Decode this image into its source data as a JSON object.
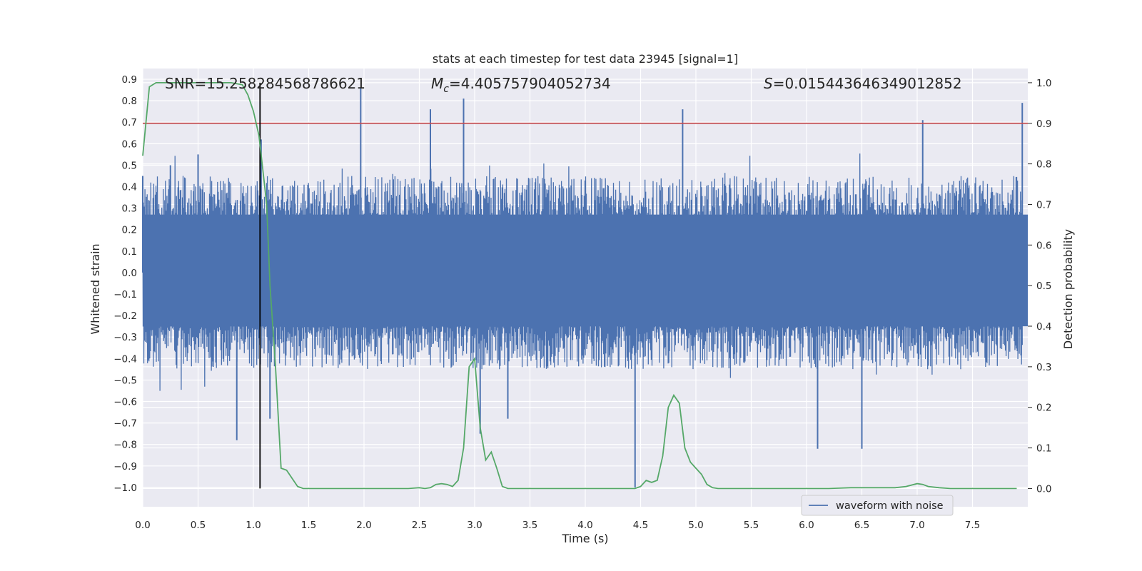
{
  "chart_data": {
    "type": "line",
    "title": "stats at each timestep for test data 23945 [signal=1]",
    "xlabel": "Time (s)",
    "ylabel_left": "Whitened strain",
    "ylabel_right": "Detection probability",
    "xlim": [
      0.0,
      8.0
    ],
    "ylim_left": [
      -1.09,
      0.95
    ],
    "ylim_right": [
      -0.045,
      1.035
    ],
    "x_ticks": [
      "0.0",
      "0.5",
      "1.0",
      "1.5",
      "2.0",
      "2.5",
      "3.0",
      "3.5",
      "4.0",
      "4.5",
      "5.0",
      "5.5",
      "6.0",
      "6.5",
      "7.0",
      "7.5"
    ],
    "y_left_ticks": [
      "0.9",
      "0.8",
      "0.7",
      "0.6",
      "0.5",
      "0.4",
      "0.3",
      "0.2",
      "0.1",
      "0.0",
      "−0.1",
      "−0.2",
      "−0.3",
      "−0.4",
      "−0.5",
      "−0.6",
      "−0.7",
      "−0.8",
      "−0.9",
      "−1.0"
    ],
    "y_right_ticks": [
      "0.0",
      "0.1",
      "0.2",
      "0.3",
      "0.4",
      "0.5",
      "0.6",
      "0.7",
      "0.8",
      "0.9",
      "1.0"
    ],
    "annotations": {
      "snr": "SNR=15.258284568786621",
      "mc": "=4.405757904052734",
      "s": "=0.015443646349012852"
    },
    "threshold": 0.9,
    "marker_time": 1.06,
    "grid": true,
    "legend_position": "lower right",
    "series": [
      {
        "name": "waveform with noise",
        "axis": "left",
        "color": "#4c72b0",
        "envelope_note": "dense noise between about -0.65 and 0.55 with spikes up to 0.86 and down to -1.0",
        "spike_times": [
          0.0,
          0.25,
          0.5,
          0.85,
          1.07,
          1.15,
          1.97,
          2.6,
          2.9,
          3.05,
          3.3,
          4.45,
          4.88,
          6.1,
          6.5,
          7.05,
          7.95
        ],
        "spike_values": [
          0.45,
          0.5,
          0.55,
          -0.78,
          0.62,
          -0.68,
          0.86,
          0.76,
          0.81,
          -0.75,
          -0.68,
          -1.0,
          0.76,
          -0.82,
          -0.82,
          0.71,
          0.79
        ]
      },
      {
        "name": "",
        "axis": "right",
        "color": "#55a868",
        "x": [
          0.0,
          0.06,
          0.12,
          0.2,
          0.3,
          0.4,
          0.5,
          0.6,
          0.7,
          0.8,
          0.9,
          0.95,
          1.0,
          1.05,
          1.1,
          1.12,
          1.15,
          1.2,
          1.25,
          1.3,
          1.35,
          1.4,
          1.45,
          1.5,
          1.6,
          1.8,
          2.0,
          2.2,
          2.4,
          2.5,
          2.55,
          2.6,
          2.65,
          2.7,
          2.75,
          2.8,
          2.85,
          2.9,
          2.95,
          3.0,
          3.05,
          3.1,
          3.15,
          3.2,
          3.25,
          3.3,
          3.35,
          3.4,
          3.5,
          3.7,
          4.0,
          4.2,
          4.4,
          4.45,
          4.5,
          4.55,
          4.6,
          4.65,
          4.7,
          4.75,
          4.8,
          4.85,
          4.9,
          4.95,
          5.0,
          5.05,
          5.1,
          5.15,
          5.2,
          5.25,
          5.3,
          5.5,
          5.8,
          6.0,
          6.2,
          6.4,
          6.5,
          6.6,
          6.7,
          6.8,
          6.9,
          7.0,
          7.05,
          7.1,
          7.2,
          7.3,
          7.5,
          7.7,
          7.9
        ],
        "values": [
          0.82,
          0.99,
          1.0,
          1.0,
          1.0,
          1.0,
          1.0,
          1.0,
          1.0,
          1.0,
          0.995,
          0.97,
          0.93,
          0.87,
          0.75,
          0.7,
          0.5,
          0.3,
          0.05,
          0.045,
          0.025,
          0.005,
          0.0,
          0.0,
          0.0,
          0.0,
          0.0,
          0.0,
          0.0,
          0.002,
          0.0,
          0.002,
          0.01,
          0.012,
          0.01,
          0.005,
          0.02,
          0.1,
          0.3,
          0.32,
          0.15,
          0.07,
          0.09,
          0.05,
          0.005,
          0.0,
          0.0,
          0.0,
          0.0,
          0.0,
          0.0,
          0.0,
          0.0,
          0.0,
          0.005,
          0.02,
          0.015,
          0.02,
          0.08,
          0.2,
          0.23,
          0.21,
          0.1,
          0.065,
          0.05,
          0.035,
          0.01,
          0.002,
          0.0,
          0.0,
          0.0,
          0.0,
          0.0,
          0.0,
          0.0,
          0.002,
          0.002,
          0.002,
          0.002,
          0.002,
          0.005,
          0.012,
          0.01,
          0.005,
          0.002,
          0.0,
          0.0,
          0.0,
          0.0
        ]
      }
    ]
  }
}
